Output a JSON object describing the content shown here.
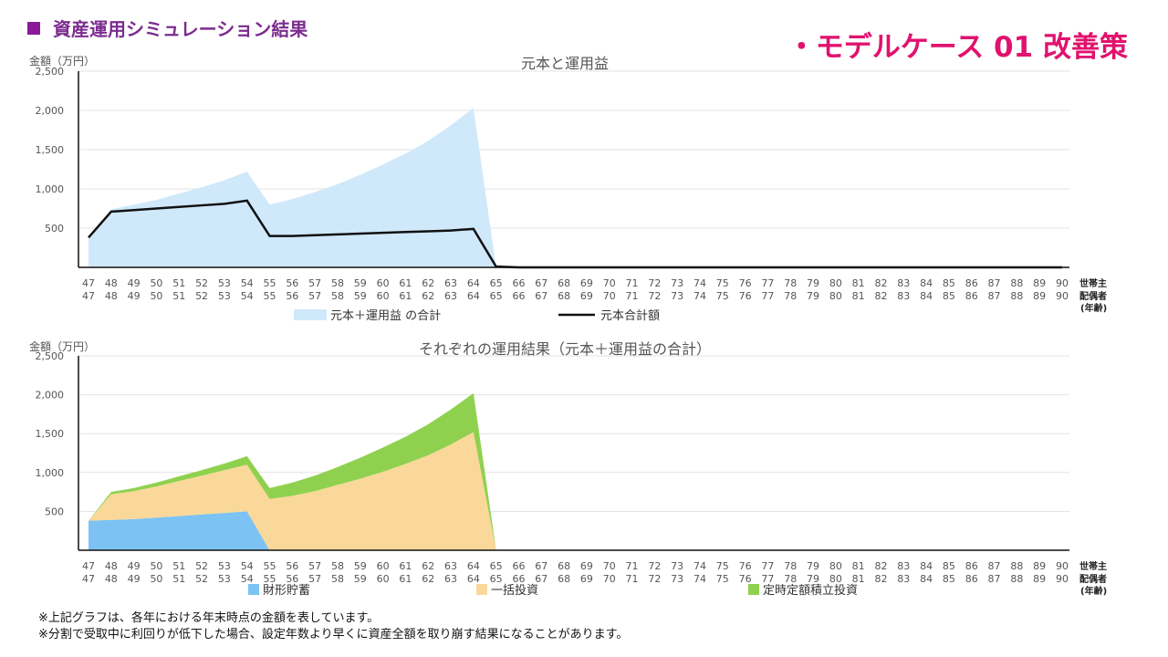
{
  "header": {
    "title": "資産運用シミュレーション結果",
    "model_case": "・モデルケース 01 改善策"
  },
  "footnotes": [
    "※上記グラフは、各年における年末時点の金額を表しています。",
    "※分割で受取中に利回りが低下した場合、設定年数より早くに資産全額を取り崩す結果になることがあります。"
  ],
  "chart_data": [
    {
      "type": "area",
      "title": "元本と運用益",
      "ylabel": "金額（万円）",
      "ylim": [
        0,
        2500
      ],
      "yticks": [
        500,
        1000,
        1500,
        2000,
        2500
      ],
      "grid": true,
      "x_label_rows": [
        "世帯主",
        "配偶者"
      ],
      "x_label_suffix": "(年齢)",
      "x_head": [
        47,
        48,
        49,
        50,
        51,
        52,
        53,
        54,
        55,
        56,
        57,
        58,
        59,
        60,
        61,
        62,
        63,
        64,
        65,
        66,
        67,
        68,
        69,
        70,
        71,
        72,
        73,
        74,
        75,
        76,
        77,
        78,
        79,
        80,
        81,
        82,
        83,
        84,
        85,
        86,
        87,
        88,
        89,
        90
      ],
      "x_spouse": [
        47,
        48,
        49,
        50,
        51,
        52,
        53,
        54,
        55,
        56,
        57,
        58,
        59,
        60,
        61,
        62,
        63,
        64,
        65,
        66,
        67,
        68,
        69,
        70,
        71,
        72,
        73,
        74,
        75,
        76,
        77,
        78,
        79,
        80,
        81,
        82,
        83,
        84,
        85,
        86,
        87,
        88,
        89,
        90
      ],
      "series": [
        {
          "name": "元本＋運用益 の合計",
          "kind": "area",
          "color": "#cfe9fb",
          "values": [
            380,
            740,
            800,
            860,
            940,
            1020,
            1110,
            1220,
            800,
            870,
            960,
            1060,
            1180,
            1310,
            1450,
            1610,
            1810,
            2030,
            0,
            0,
            0,
            0,
            0,
            0,
            0,
            0,
            0,
            0,
            0,
            0,
            0,
            0,
            0,
            0,
            0,
            0,
            0,
            0,
            0,
            0,
            0,
            0,
            0,
            0
          ]
        },
        {
          "name": "元本合計額",
          "kind": "line",
          "color": "#111111",
          "values": [
            380,
            710,
            730,
            750,
            770,
            790,
            810,
            850,
            400,
            400,
            410,
            420,
            430,
            440,
            450,
            460,
            470,
            490,
            10,
            0,
            0,
            0,
            0,
            0,
            0,
            0,
            0,
            0,
            0,
            0,
            0,
            0,
            0,
            0,
            0,
            0,
            0,
            0,
            0,
            0,
            0,
            0,
            0,
            0
          ]
        }
      ]
    },
    {
      "type": "area",
      "stacked": true,
      "title": "それぞれの運用結果（元本＋運用益の合計）",
      "ylabel": "金額（万円）",
      "ylim": [
        0,
        2500
      ],
      "yticks": [
        500,
        1000,
        1500,
        2000,
        2500
      ],
      "grid": true,
      "x_label_rows": [
        "世帯主",
        "配偶者"
      ],
      "x_label_suffix": "(年齢)",
      "x_head": [
        47,
        48,
        49,
        50,
        51,
        52,
        53,
        54,
        55,
        56,
        57,
        58,
        59,
        60,
        61,
        62,
        63,
        64,
        65,
        66,
        67,
        68,
        69,
        70,
        71,
        72,
        73,
        74,
        75,
        76,
        77,
        78,
        79,
        80,
        81,
        82,
        83,
        84,
        85,
        86,
        87,
        88,
        89,
        90
      ],
      "x_spouse": [
        47,
        48,
        49,
        50,
        51,
        52,
        53,
        54,
        55,
        56,
        57,
        58,
        59,
        60,
        61,
        62,
        63,
        64,
        65,
        66,
        67,
        68,
        69,
        70,
        71,
        72,
        73,
        74,
        75,
        76,
        77,
        78,
        79,
        80,
        81,
        82,
        83,
        84,
        85,
        86,
        87,
        88,
        89,
        90
      ],
      "series": [
        {
          "name": "財形貯蓄",
          "color": "#7cc3f3",
          "values": [
            380,
            390,
            400,
            420,
            440,
            460,
            480,
            500,
            0,
            0,
            0,
            0,
            0,
            0,
            0,
            0,
            0,
            0,
            0,
            0,
            0,
            0,
            0,
            0,
            0,
            0,
            0,
            0,
            0,
            0,
            0,
            0,
            0,
            0,
            0,
            0,
            0,
            0,
            0,
            0,
            0,
            0,
            0,
            0
          ]
        },
        {
          "name": "一括投資",
          "color": "#fad899",
          "values": [
            0,
            330,
            360,
            400,
            450,
            500,
            550,
            600,
            660,
            700,
            760,
            840,
            920,
            1010,
            1110,
            1220,
            1360,
            1520,
            0,
            0,
            0,
            0,
            0,
            0,
            0,
            0,
            0,
            0,
            0,
            0,
            0,
            0,
            0,
            0,
            0,
            0,
            0,
            0,
            0,
            0,
            0,
            0,
            0,
            0
          ]
        },
        {
          "name": "定時定額積立投資",
          "color": "#8fd14f",
          "values": [
            0,
            30,
            40,
            50,
            60,
            70,
            85,
            110,
            140,
            170,
            200,
            230,
            270,
            310,
            350,
            400,
            450,
            500,
            0,
            0,
            0,
            0,
            0,
            0,
            0,
            0,
            0,
            0,
            0,
            0,
            0,
            0,
            0,
            0,
            0,
            0,
            0,
            0,
            0,
            0,
            0,
            0,
            0,
            0
          ]
        }
      ]
    }
  ]
}
